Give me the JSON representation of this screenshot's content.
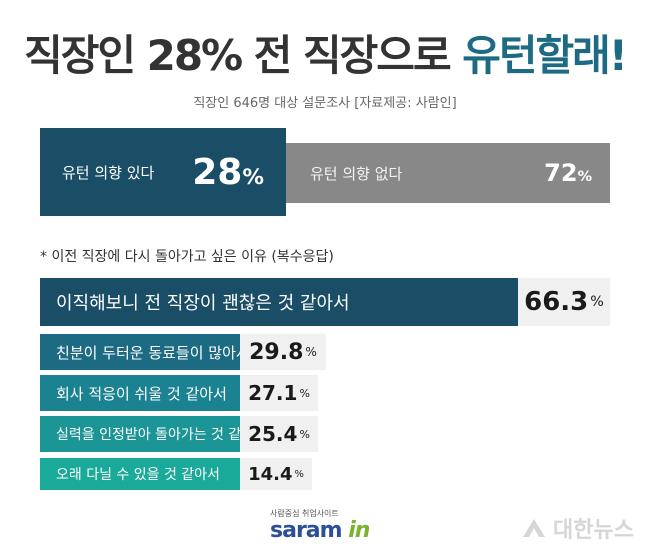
{
  "title": {
    "main": "직장인 28% 전 직장으로",
    "accent": "유턴할래!"
  },
  "subtitle": "직장인 646명 대상 설문조사  [자료제공: 사람인]",
  "intent": {
    "yes": {
      "label": "유턴 의향 있다",
      "value": "28",
      "unit": "%"
    },
    "no": {
      "label": "유턴 의향 없다",
      "value": "72",
      "unit": "%"
    }
  },
  "note": "* 이전 직장에 다시 돌아가고 싶은 이유 (복수응답)",
  "chart_data": {
    "type": "bar",
    "orientation": "horizontal",
    "categories": [
      "이직해보니 전 직장이 괜찮은 것 같아서",
      "친분이 두터운 동료들이 많아서",
      "회사 적응이 쉬울 것 같아서",
      "실력을 인정받아 돌아가는 것 같아서",
      "오래 다닐 수 있을 것 같아서"
    ],
    "values": [
      66.3,
      29.8,
      27.1,
      25.4,
      14.4
    ],
    "value_labels": [
      "66.3",
      "29.8",
      "27.1",
      "25.4",
      "14.4"
    ],
    "unit": "%",
    "colors": [
      "#1a4d66",
      "#1d6b83",
      "#1a8290",
      "#1b9595",
      "#1aaa99"
    ],
    "value_bg": "#f0f0f0",
    "xlim": [
      0,
      66.3
    ]
  },
  "logo": {
    "small": "사람중심 취업사이트",
    "main": "saram",
    "accent": "in"
  },
  "watermark": "대한뉴스"
}
